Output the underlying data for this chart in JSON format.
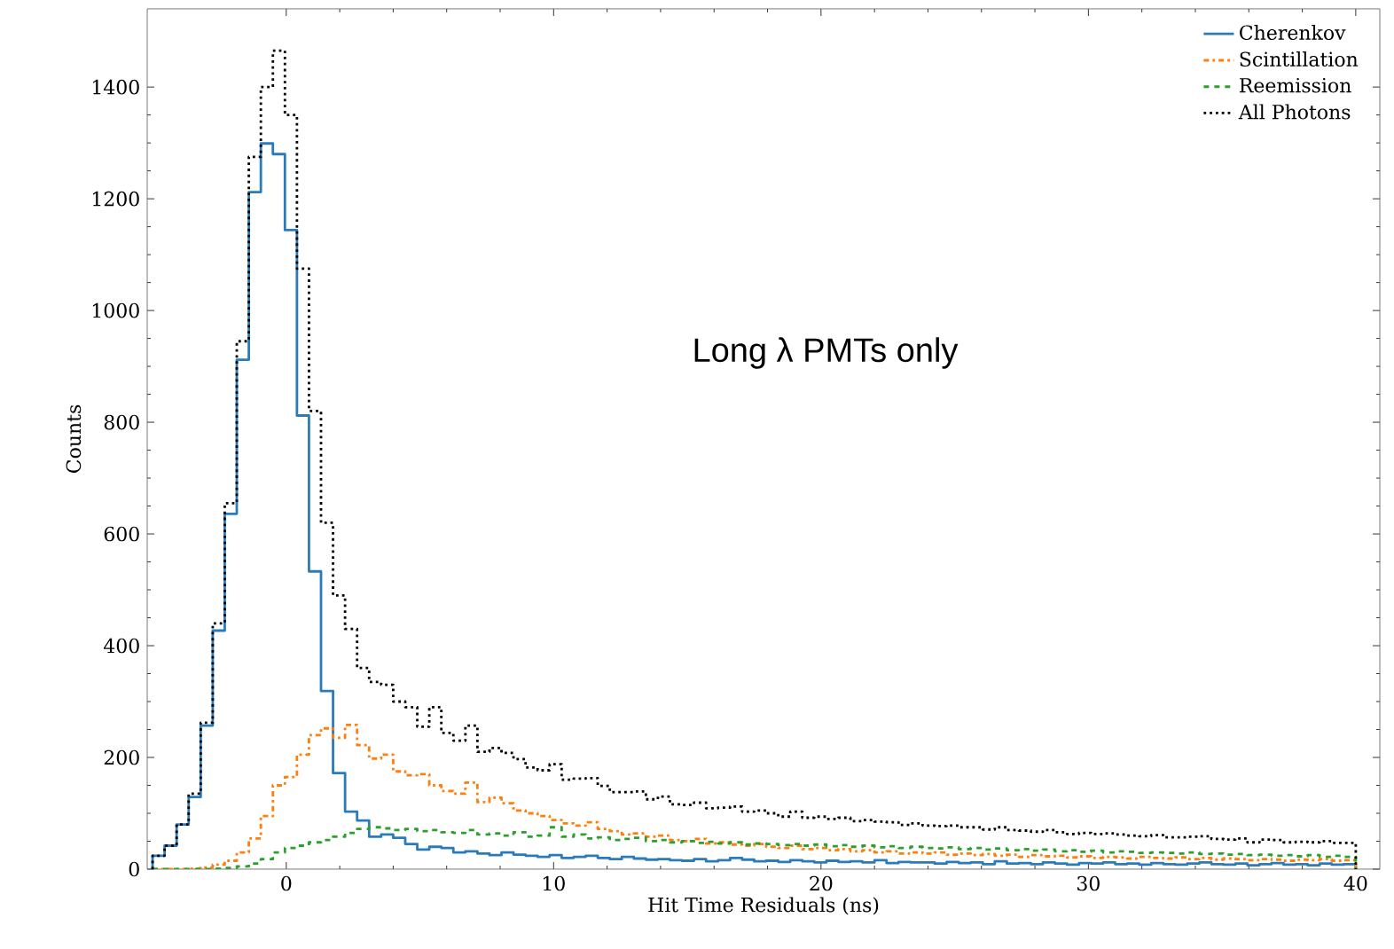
{
  "chart_data": {
    "type": "histogram",
    "xlabel": "Hit Time Residuals (ns)",
    "ylabel": "Counts",
    "annotations": [
      "Long λ PMTs only"
    ],
    "bins": [
      -5,
      -4.55,
      -4.1,
      -3.65,
      -3.2,
      -2.75,
      -2.3,
      -1.85,
      -1.4,
      -0.95,
      -0.5,
      -0.05,
      0.4,
      0.85,
      1.3,
      1.75,
      2.2,
      2.65,
      3.1,
      3.55,
      4,
      4.45,
      4.9,
      5.35,
      5.8,
      6.25,
      6.7,
      7.15,
      7.6,
      8.05,
      8.5,
      8.95,
      9.4,
      9.85,
      10.3,
      10.75,
      11.2,
      11.65,
      12.1,
      12.55,
      13,
      13.45,
      13.9,
      14.35,
      14.8,
      15.25,
      15.7,
      16.15,
      16.6,
      17.05,
      17.5,
      17.95,
      18.4,
      18.85,
      19.3,
      19.75,
      20.2,
      20.65,
      21.1,
      21.55,
      22,
      22.45,
      22.9,
      23.35,
      23.8,
      24.25,
      24.7,
      25.15,
      25.6,
      26.05,
      26.5,
      26.95,
      27.4,
      27.85,
      28.3,
      28.75,
      29.2,
      29.65,
      30.1,
      30.55,
      31,
      31.45,
      31.9,
      32.35,
      32.8,
      33.25,
      33.7,
      34.15,
      34.6,
      35.05,
      35.5,
      35.95,
      36.4,
      36.85,
      37.3,
      37.75,
      38.2,
      38.65,
      39.1,
      39.55,
      40
    ],
    "series": [
      {
        "name": "Cherenkov",
        "color": "#2b7bba",
        "line_style": "solid",
        "values": [
          24,
          42,
          80,
          129,
          257,
          427,
          636,
          912,
          1212,
          1299,
          1280,
          1144,
          812,
          533,
          319,
          172,
          103,
          87,
          58,
          62,
          56,
          45,
          35,
          40,
          38,
          30,
          32,
          28,
          25,
          30,
          26,
          24,
          22,
          25,
          20,
          22,
          24,
          20,
          18,
          22,
          19,
          17,
          18,
          16,
          15,
          18,
          14,
          16,
          20,
          17,
          14,
          15,
          13,
          16,
          14,
          12,
          15,
          13,
          14,
          12,
          16,
          11,
          13,
          12,
          12,
          10,
          13,
          11,
          12,
          9,
          14,
          10,
          11,
          9,
          12,
          10,
          8,
          11,
          10,
          12,
          9,
          10,
          8,
          11,
          9,
          8,
          10,
          12,
          9,
          8,
          10,
          7,
          9,
          11,
          8,
          9,
          7,
          10,
          8,
          9
        ]
      },
      {
        "name": "Scintillation",
        "color": "#ff7f0e",
        "line_style": "dashdot",
        "values": [
          0,
          0,
          0,
          1,
          3,
          8,
          15,
          30,
          55,
          95,
          150,
          165,
          205,
          240,
          252,
          235,
          258,
          222,
          198,
          205,
          175,
          168,
          170,
          150,
          140,
          135,
          155,
          120,
          128,
          118,
          105,
          100,
          95,
          88,
          82,
          78,
          84,
          72,
          68,
          62,
          64,
          58,
          60,
          52,
          50,
          54,
          46,
          48,
          44,
          42,
          45,
          40,
          38,
          42,
          36,
          38,
          34,
          36,
          32,
          34,
          30,
          32,
          28,
          30,
          28,
          30,
          26,
          28,
          25,
          27,
          24,
          26,
          22,
          25,
          23,
          24,
          21,
          23,
          20,
          22,
          21,
          19,
          22,
          20,
          19,
          21,
          18,
          20,
          17,
          19,
          18,
          16,
          18,
          17,
          15,
          17,
          16,
          18,
          15,
          16
        ]
      },
      {
        "name": "Reemission",
        "color": "#2ca02c",
        "line_style": "dashed",
        "values": [
          0,
          0,
          0,
          0,
          0,
          1,
          2,
          5,
          10,
          18,
          30,
          38,
          42,
          48,
          52,
          58,
          65,
          72,
          75,
          73,
          70,
          72,
          68,
          70,
          66,
          65,
          70,
          62,
          64,
          60,
          66,
          58,
          60,
          75,
          58,
          62,
          55,
          57,
          52,
          54,
          56,
          50,
          52,
          48,
          50,
          47,
          49,
          46,
          48,
          44,
          46,
          45,
          43,
          45,
          42,
          44,
          41,
          43,
          40,
          42,
          39,
          41,
          38,
          40,
          38,
          37,
          39,
          36,
          38,
          35,
          37,
          34,
          36,
          33,
          35,
          32,
          34,
          31,
          33,
          30,
          32,
          31,
          29,
          30,
          29,
          28,
          30,
          27,
          28,
          26,
          27,
          25,
          26,
          24,
          25,
          23,
          25,
          22,
          24,
          22
        ]
      },
      {
        "name": "All Photons",
        "color": "#000000",
        "line_style": "dotted",
        "values": [
          24,
          42,
          80,
          135,
          262,
          440,
          655,
          945,
          1275,
          1400,
          1465,
          1350,
          1075,
          820,
          620,
          490,
          430,
          360,
          335,
          330,
          300,
          290,
          255,
          290,
          244,
          230,
          257,
          210,
          217,
          208,
          197,
          182,
          177,
          188,
          160,
          162,
          163,
          149,
          138,
          138,
          139,
          125,
          130,
          116,
          115,
          119,
          109,
          110,
          112,
          103,
          105,
          100,
          94,
          103,
          92,
          94,
          90,
          92,
          86,
          88,
          85,
          84,
          79,
          82,
          78,
          77,
          78,
          75,
          75,
          71,
          75,
          70,
          69,
          67,
          70,
          66,
          63,
          65,
          63,
          64,
          62,
          60,
          59,
          61,
          57,
          57,
          58,
          59,
          54,
          53,
          55,
          48,
          53,
          52,
          48,
          49,
          48,
          50,
          47,
          47
        ]
      }
    ],
    "xlim": [
      -5.2,
      40.9
    ],
    "ylim": [
      0,
      1540
    ],
    "xticks": [
      0,
      10,
      20,
      30,
      40
    ],
    "yticks": [
      0,
      200,
      400,
      600,
      800,
      1000,
      1200,
      1400
    ],
    "legend": "top right",
    "grid": false
  }
}
